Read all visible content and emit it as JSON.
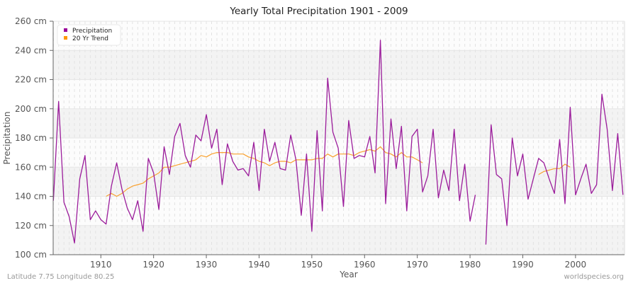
{
  "chart_data": {
    "type": "line",
    "title": "Yearly Total Precipitation 1901 - 2009",
    "xlabel": "Year",
    "ylabel": "Precipitation",
    "xlim": [
      1901,
      2009
    ],
    "ylim": [
      100,
      260
    ],
    "x_ticks": [
      1910,
      1920,
      1930,
      1940,
      1950,
      1960,
      1970,
      1980,
      1990,
      2000
    ],
    "y_ticks": [
      100,
      120,
      140,
      160,
      180,
      200,
      220,
      240,
      260
    ],
    "y_tick_labels": [
      "100 cm",
      "120 cm",
      "140 cm",
      "160 cm",
      "180 cm",
      "200 cm",
      "220 cm",
      "240 cm",
      "260 cm"
    ],
    "grid": true,
    "legend_position": "top-left",
    "series": [
      {
        "name": "Precipitation",
        "color": "#9b1c9b",
        "x": [
          1901,
          1902,
          1903,
          1904,
          1905,
          1906,
          1907,
          1908,
          1909,
          1910,
          1911,
          1912,
          1913,
          1914,
          1915,
          1916,
          1917,
          1918,
          1919,
          1920,
          1921,
          1922,
          1923,
          1924,
          1925,
          1926,
          1927,
          1928,
          1929,
          1930,
          1931,
          1932,
          1933,
          1934,
          1935,
          1936,
          1937,
          1938,
          1939,
          1940,
          1941,
          1942,
          1943,
          1944,
          1945,
          1946,
          1947,
          1948,
          1949,
          1950,
          1951,
          1952,
          1953,
          1954,
          1955,
          1956,
          1957,
          1958,
          1959,
          1960,
          1961,
          1962,
          1963,
          1964,
          1965,
          1966,
          1967,
          1968,
          1969,
          1970,
          1971,
          1972,
          1973,
          1974,
          1975,
          1976,
          1977,
          1978,
          1979,
          1980,
          1981,
          1982,
          1983,
          1984,
          1985,
          1986,
          1987,
          1988,
          1989,
          1990,
          1991,
          1992,
          1993,
          1994,
          1995,
          1996,
          1997,
          1998,
          1999,
          2000,
          2001,
          2002,
          2003,
          2004,
          2005,
          2006,
          2007,
          2008,
          2009
        ],
        "values": [
          137,
          205,
          136,
          126,
          108,
          152,
          168,
          124,
          130,
          124,
          121,
          147,
          163,
          145,
          132,
          124,
          137,
          116,
          166,
          156,
          131,
          174,
          155,
          181,
          190,
          168,
          160,
          182,
          178,
          196,
          173,
          186,
          148,
          176,
          164,
          158,
          159,
          154,
          177,
          144,
          186,
          164,
          177,
          159,
          158,
          182,
          165,
          127,
          169,
          116,
          185,
          130,
          221,
          184,
          173,
          133,
          192,
          166,
          168,
          167,
          181,
          156,
          247,
          135,
          193,
          159,
          188,
          130,
          181,
          186,
          143,
          154,
          186,
          139,
          158,
          144,
          186,
          137,
          162,
          123,
          141,
          null,
          107,
          189,
          155,
          152,
          120,
          180,
          154,
          169,
          138,
          152,
          166,
          163,
          152,
          142,
          179,
          135,
          201,
          141,
          152,
          162,
          142,
          148,
          210,
          186,
          144,
          183,
          141
        ]
      },
      {
        "name": "20 Yr Trend",
        "color": "#f9a12f",
        "x": [
          1911,
          1912,
          1913,
          1914,
          1915,
          1916,
          1917,
          1918,
          1919,
          1920,
          1921,
          1922,
          1923,
          1924,
          1925,
          1926,
          1927,
          1928,
          1929,
          1930,
          1931,
          1932,
          1933,
          1934,
          1935,
          1936,
          1937,
          1938,
          1939,
          1940,
          1941,
          1942,
          1943,
          1944,
          1945,
          1946,
          1947,
          1948,
          1949,
          1950,
          1951,
          1952,
          1953,
          1954,
          1955,
          1956,
          1957,
          1958,
          1959,
          1960,
          1961,
          1962,
          1963,
          1964,
          1965,
          1966,
          1967,
          1968,
          1969,
          1970,
          1971,
          1972,
          1973,
          1974,
          1975,
          1976,
          1977,
          1978,
          1979,
          1980,
          1981,
          1982,
          1983,
          1984,
          1985,
          1986,
          1987,
          1988,
          1989,
          1990,
          1991,
          1992,
          1993,
          1994,
          1995,
          1996,
          1997,
          1998,
          1999
        ],
        "values": [
          140,
          142,
          140,
          142,
          145,
          147,
          148,
          149,
          152,
          154,
          156,
          160,
          160,
          161,
          162,
          163,
          164,
          165,
          168,
          167,
          169,
          170,
          170,
          170,
          169,
          169,
          169,
          167,
          166,
          164,
          163,
          161,
          163,
          164,
          164,
          163,
          165,
          165,
          165,
          165,
          166,
          166,
          169,
          167,
          169,
          169,
          169,
          168,
          170,
          171,
          172,
          171,
          174,
          170,
          169,
          167,
          170,
          167,
          167,
          165,
          163,
          null,
          null,
          null,
          null,
          null,
          null,
          null,
          null,
          null,
          null,
          null,
          null,
          null,
          null,
          null,
          null,
          null,
          null,
          null,
          null,
          null,
          155,
          157,
          158,
          159,
          159,
          162,
          160
        ]
      }
    ]
  },
  "legend": {
    "items": [
      {
        "label": "Precipitation",
        "color": "#990099"
      },
      {
        "label": "20 Yr Trend",
        "color": "#ff9900"
      }
    ]
  },
  "footer": {
    "location": "Latitude 7.75 Longitude 80.25",
    "source": "worldspecies.org"
  },
  "colors": {
    "band_dark": "#f3f3f3",
    "band_light": "#fcfcfc",
    "grid": "#e2e2e2",
    "axis": "#666666"
  }
}
